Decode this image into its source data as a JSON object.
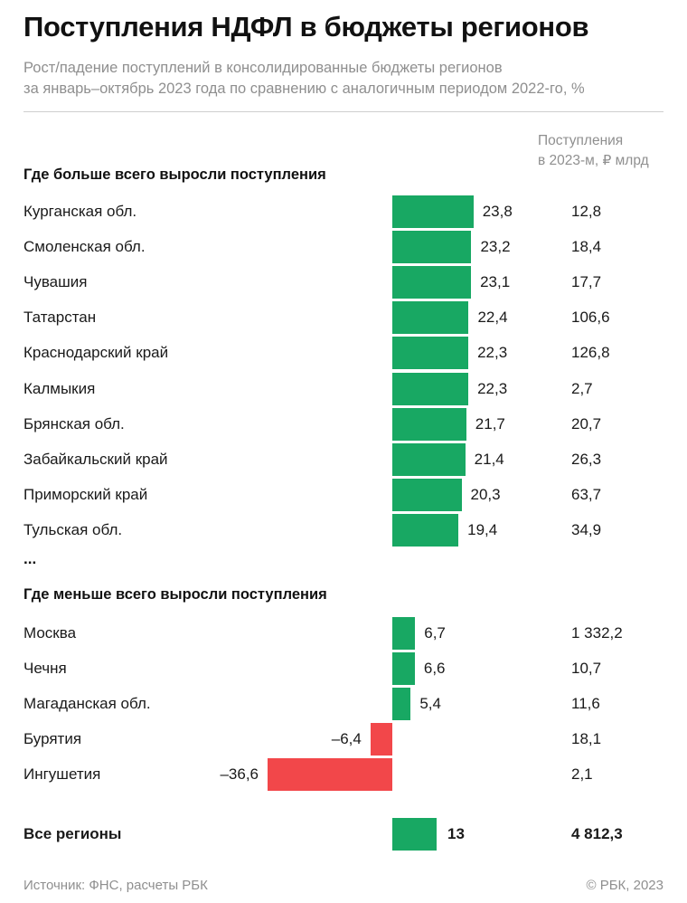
{
  "header": {
    "title": "Поступления НДФЛ в бюджеты регионов",
    "subtitle_line1": "Рост/падение поступлений в консолидированные бюджеты регионов",
    "subtitle_line2": "за январь–октябрь 2023 года по сравнению с аналогичным периодом 2022-го, %",
    "column_header_line1": "Поступления",
    "column_header_line2": "в 2023-м, ₽ млрд"
  },
  "sections": {
    "top": "Где больше всего выросли поступления",
    "bottom": "Где меньше всего выросли поступления",
    "ellipsis": "..."
  },
  "chart_data": {
    "type": "bar",
    "orientation": "horizontal",
    "title": "Поступления НДФЛ в бюджеты регионов",
    "colors": {
      "positive": "#18a863",
      "negative": "#f2474a"
    },
    "top_regions": [
      {
        "name": "Курганская обл.",
        "change": 23.8,
        "change_label": "23,8",
        "revenue": "12,8"
      },
      {
        "name": "Смоленская обл.",
        "change": 23.2,
        "change_label": "23,2",
        "revenue": "18,4"
      },
      {
        "name": "Чувашия",
        "change": 23.1,
        "change_label": "23,1",
        "revenue": "17,7"
      },
      {
        "name": "Татарстан",
        "change": 22.4,
        "change_label": "22,4",
        "revenue": "106,6"
      },
      {
        "name": "Краснодарский край",
        "change": 22.3,
        "change_label": "22,3",
        "revenue": "126,8"
      },
      {
        "name": "Калмыкия",
        "change": 22.3,
        "change_label": "22,3",
        "revenue": "2,7"
      },
      {
        "name": "Брянская обл.",
        "change": 21.7,
        "change_label": "21,7",
        "revenue": "20,7"
      },
      {
        "name": "Забайкальский край",
        "change": 21.4,
        "change_label": "21,4",
        "revenue": "26,3"
      },
      {
        "name": "Приморский край",
        "change": 20.3,
        "change_label": "20,3",
        "revenue": "63,7"
      },
      {
        "name": "Тульская обл.",
        "change": 19.4,
        "change_label": "19,4",
        "revenue": "34,9"
      }
    ],
    "bottom_regions": [
      {
        "name": "Москва",
        "change": 6.7,
        "change_label": "6,7",
        "revenue": "1 332,2"
      },
      {
        "name": "Чечня",
        "change": 6.6,
        "change_label": "6,6",
        "revenue": "10,7"
      },
      {
        "name": "Магаданская обл.",
        "change": 5.4,
        "change_label": "5,4",
        "revenue": "11,6"
      },
      {
        "name": "Бурятия",
        "change": -6.4,
        "change_label": "–6,4",
        "revenue": "18,1"
      },
      {
        "name": "Ингушетия",
        "change": -36.6,
        "change_label": "–36,6",
        "revenue": "2,1"
      }
    ],
    "total": {
      "name": "Все регионы",
      "change": 13,
      "change_label": "13",
      "revenue": "4 812,3"
    }
  },
  "footer": {
    "source": "Источник: ФНС, расчеты РБК",
    "copyright": "© РБК, 2023"
  }
}
